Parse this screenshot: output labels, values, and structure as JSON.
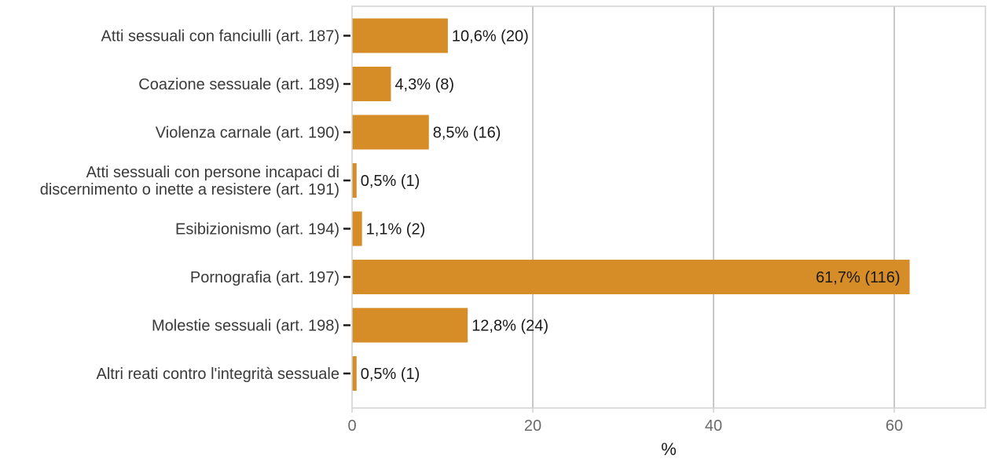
{
  "chart_data": {
    "type": "bar",
    "orientation": "horizontal",
    "title": "",
    "xlabel": "%",
    "ylabel": "",
    "xlim": [
      0,
      70
    ],
    "x_ticks": [
      0,
      20,
      40,
      60
    ],
    "grid": true,
    "legend": "none",
    "categories": [
      [
        "Atti sessuali con fanciulli (art. 187)"
      ],
      [
        "Coazione sessuale (art. 189)"
      ],
      [
        "Violenza carnale (art. 190)"
      ],
      [
        "Atti sessuali con persone incapaci di",
        "discernimento o inette a resistere (art. 191)"
      ],
      [
        "Esibizionismo (art. 194)"
      ],
      [
        "Pornografia (art. 197)"
      ],
      [
        "Molestie sessuali (art. 198)"
      ],
      [
        "Altri reati contro l'integrità sessuale"
      ]
    ],
    "values": [
      10.6,
      4.3,
      8.5,
      0.5,
      1.1,
      61.7,
      12.8,
      0.5
    ],
    "data_labels": [
      "10,6% (20)",
      "4,3% (8)",
      "8,5% (16)",
      "0,5% (1)",
      "1,1% (2)",
      "61,7% (116)",
      "12,8% (24)",
      "0,5% (1)"
    ],
    "colors": {
      "bar": "#D68C27",
      "grid": "#C8C8C8",
      "panel_border": "#D0D0D0",
      "text": "#3A3A3A",
      "tick": "#1A1A1A"
    }
  }
}
